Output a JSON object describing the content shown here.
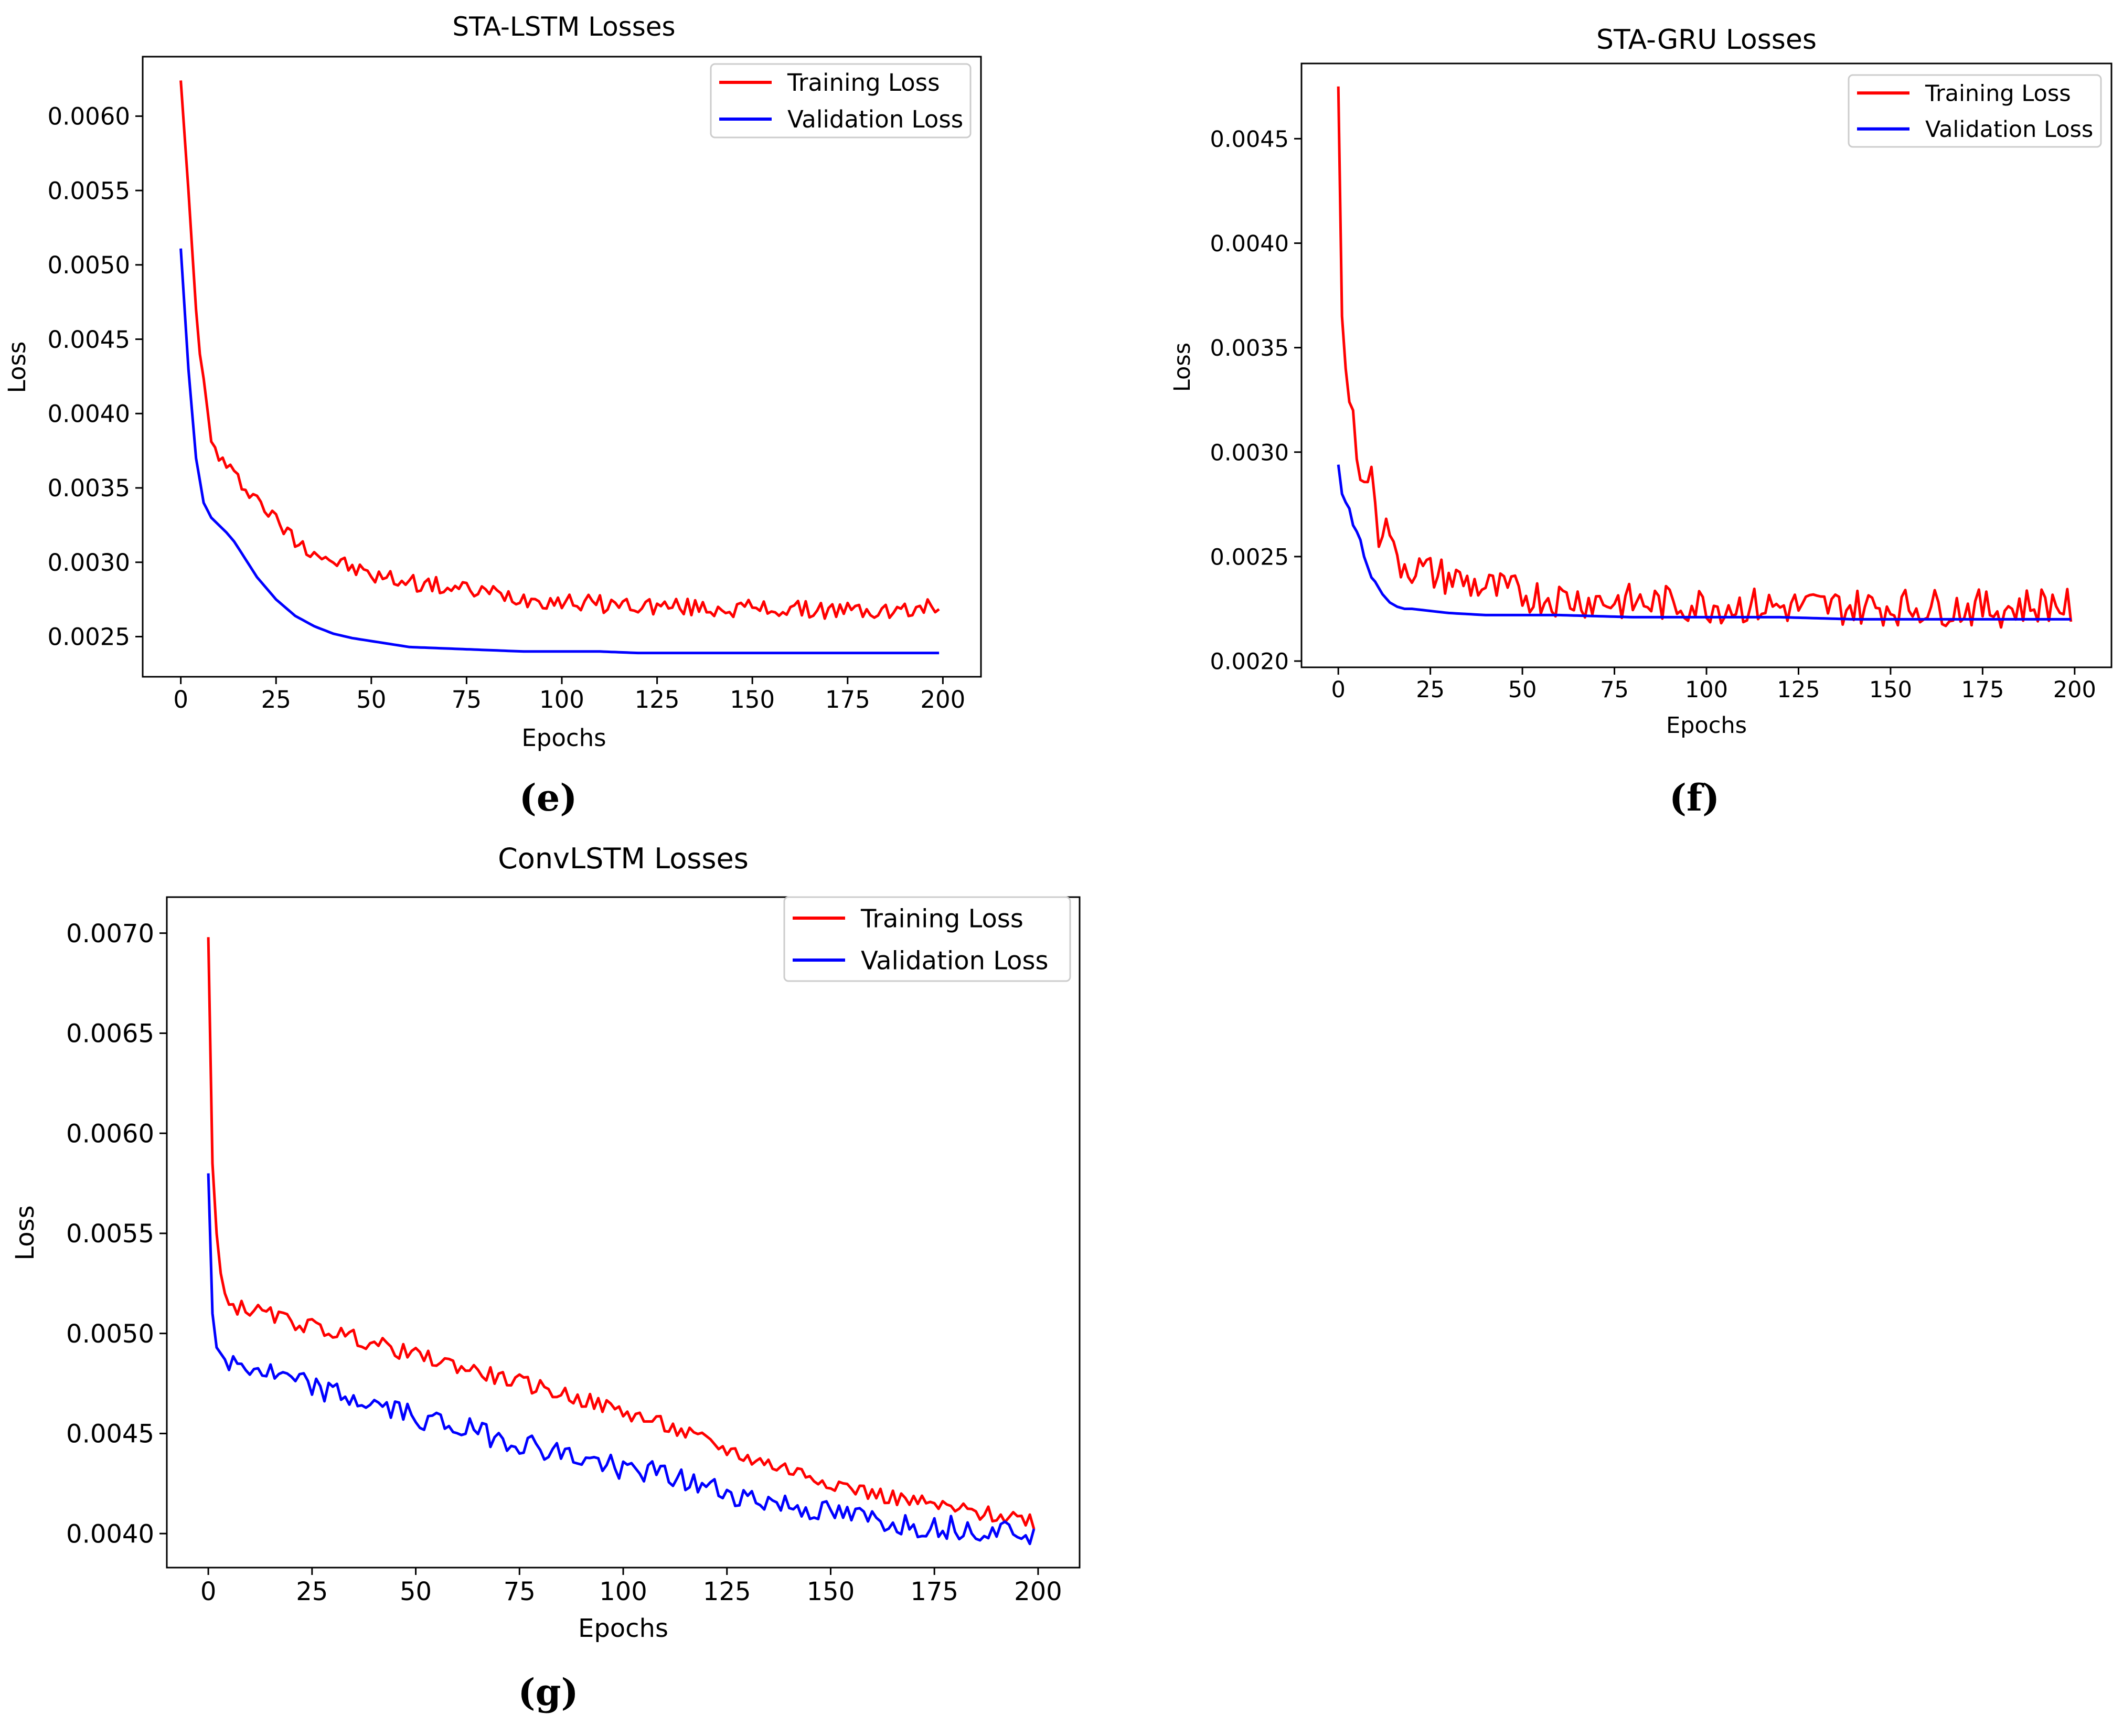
{
  "colors": {
    "training": "#ff0000",
    "validation": "#0000ff",
    "axis": "#000000",
    "background": "#ffffff"
  },
  "chart_data": [
    {
      "panel": "(e)",
      "type": "line",
      "title": "STA-LSTM Losses",
      "xlabel": "Epochs",
      "ylabel": "Loss",
      "xlim": [
        -10,
        210
      ],
      "ylim": [
        0.00223,
        0.0064
      ],
      "x_ticks": [
        0,
        25,
        50,
        75,
        100,
        125,
        150,
        175,
        200
      ],
      "x_tick_labels": [
        "0",
        "25",
        "50",
        "75",
        "100",
        "125",
        "150",
        "175",
        "200"
      ],
      "y_ticks": [
        0.0025,
        0.003,
        0.0035,
        0.004,
        0.0045,
        0.005,
        0.0055,
        0.006
      ],
      "y_tick_labels": [
        "0.0025",
        "0.0030",
        "0.0035",
        "0.0040",
        "0.0045",
        "0.0050",
        "0.0055",
        "0.0060"
      ],
      "legend": [
        "Training Loss",
        "Validation Loss"
      ],
      "legend_position": "upper right",
      "series": [
        {
          "name": "Training Loss",
          "x": [
            0,
            2,
            4,
            6,
            8,
            10,
            12,
            14,
            16,
            18,
            20,
            25,
            30,
            35,
            40,
            45,
            50,
            55,
            60,
            70,
            80,
            90,
            100,
            110,
            120,
            130,
            140,
            150,
            160,
            170,
            180,
            190,
            199
          ],
          "values": [
            0.00624,
            0.0055,
            0.0047,
            0.0042,
            0.0038,
            0.00372,
            0.00364,
            0.00358,
            0.00353,
            0.00349,
            0.00343,
            0.00328,
            0.00315,
            0.00308,
            0.00301,
            0.00296,
            0.00291,
            0.00289,
            0.00287,
            0.00283,
            0.0028,
            0.00276,
            0.00274,
            0.00272,
            0.00271,
            0.0027,
            0.00269,
            0.00269,
            0.00268,
            0.00268,
            0.00267,
            0.00267,
            0.00271
          ],
          "noise_amplitude": 6e-05
        },
        {
          "name": "Validation Loss",
          "x": [
            0,
            2,
            4,
            6,
            8,
            10,
            12,
            14,
            16,
            18,
            20,
            25,
            30,
            35,
            40,
            45,
            50,
            55,
            60,
            70,
            80,
            90,
            100,
            110,
            120,
            130,
            140,
            150,
            160,
            170,
            180,
            190,
            199
          ],
          "values": [
            0.00511,
            0.0043,
            0.0037,
            0.0034,
            0.0033,
            0.00325,
            0.0032,
            0.00314,
            0.00306,
            0.00298,
            0.0029,
            0.00275,
            0.00264,
            0.00257,
            0.00252,
            0.00249,
            0.00247,
            0.00245,
            0.00243,
            0.00242,
            0.00241,
            0.0024,
            0.0024,
            0.0024,
            0.00239,
            0.00239,
            0.00239,
            0.00239,
            0.00239,
            0.00239,
            0.00239,
            0.00239,
            0.00239
          ],
          "noise_amplitude": 0.0
        }
      ]
    },
    {
      "panel": "(f)",
      "type": "line",
      "title": "STA-GRU Losses",
      "xlabel": "Epochs",
      "ylabel": "Loss",
      "xlim": [
        -10,
        210
      ],
      "ylim": [
        0.00197,
        0.00486
      ],
      "x_ticks": [
        0,
        25,
        50,
        75,
        100,
        125,
        150,
        175,
        200
      ],
      "x_tick_labels": [
        "0",
        "25",
        "50",
        "75",
        "100",
        "125",
        "150",
        "175",
        "200"
      ],
      "y_ticks": [
        0.002,
        0.0025,
        0.003,
        0.0035,
        0.004,
        0.0045
      ],
      "y_tick_labels": [
        "0.0020",
        "0.0025",
        "0.0030",
        "0.0035",
        "0.0040",
        "0.0045"
      ],
      "legend": [
        "Training Loss",
        "Validation Loss"
      ],
      "legend_position": "upper right",
      "series": [
        {
          "name": "Training Loss",
          "x": [
            0,
            1,
            2,
            3,
            4,
            5,
            6,
            7,
            8,
            9,
            10,
            11,
            12,
            13,
            14,
            15,
            16,
            18,
            20,
            25,
            30,
            40,
            50,
            60,
            80,
            100,
            120,
            140,
            160,
            180,
            195,
            199
          ],
          "values": [
            0.00475,
            0.00365,
            0.0034,
            0.00324,
            0.0032,
            0.003,
            0.00283,
            0.00288,
            0.0029,
            0.00285,
            0.00282,
            0.00262,
            0.00265,
            0.00263,
            0.00265,
            0.0025,
            0.00248,
            0.00247,
            0.00245,
            0.00242,
            0.0024,
            0.00235,
            0.00232,
            0.0023,
            0.00228,
            0.00227,
            0.00226,
            0.00226,
            0.00226,
            0.00225,
            0.00228,
            0.00225
          ],
          "noise_amplitude": 9e-05
        },
        {
          "name": "Validation Loss",
          "x": [
            0,
            1,
            2,
            3,
            4,
            5,
            6,
            7,
            8,
            9,
            10,
            12,
            14,
            16,
            18,
            20,
            25,
            30,
            40,
            50,
            60,
            80,
            100,
            120,
            140,
            160,
            180,
            199
          ],
          "values": [
            0.00294,
            0.0028,
            0.00276,
            0.00273,
            0.00265,
            0.00262,
            0.00258,
            0.0025,
            0.00245,
            0.0024,
            0.00238,
            0.00232,
            0.00228,
            0.00226,
            0.00225,
            0.00225,
            0.00224,
            0.00223,
            0.00222,
            0.00222,
            0.00222,
            0.00221,
            0.00221,
            0.00221,
            0.0022,
            0.0022,
            0.0022,
            0.0022
          ],
          "noise_amplitude": 0.0
        }
      ]
    },
    {
      "panel": "(g)",
      "type": "line",
      "title": "ConvLSTM Losses",
      "xlabel": "Epochs",
      "ylabel": "Loss",
      "xlim": [
        -10,
        210
      ],
      "ylim": [
        0.00383,
        0.00718
      ],
      "x_ticks": [
        0,
        25,
        50,
        75,
        100,
        125,
        150,
        175,
        200
      ],
      "x_tick_labels": [
        "0",
        "25",
        "50",
        "75",
        "100",
        "125",
        "150",
        "175",
        "200"
      ],
      "y_ticks": [
        0.004,
        0.0045,
        0.005,
        0.0055,
        0.006,
        0.0065,
        0.007
      ],
      "y_tick_labels": [
        "0.0040",
        "0.0045",
        "0.0050",
        "0.0055",
        "0.0060",
        "0.0065",
        "0.0070"
      ],
      "legend": [
        "Training Loss",
        "Validation Loss"
      ],
      "legend_position": "upper right",
      "series": [
        {
          "name": "Training Loss",
          "x": [
            0,
            1,
            2,
            3,
            4,
            5,
            10,
            20,
            30,
            40,
            50,
            60,
            70,
            80,
            90,
            100,
            110,
            120,
            130,
            140,
            150,
            160,
            170,
            180,
            190,
            197,
            199
          ],
          "values": [
            0.00698,
            0.00585,
            0.0055,
            0.0053,
            0.0052,
            0.00514,
            0.00512,
            0.00506,
            0.00501,
            0.00495,
            0.00489,
            0.00484,
            0.00478,
            0.00473,
            0.00467,
            0.00461,
            0.00454,
            0.00446,
            0.00438,
            0.00432,
            0.00426,
            0.0042,
            0.00416,
            0.00412,
            0.00409,
            0.00408,
            0.00406
          ],
          "noise_amplitude": 4e-05
        },
        {
          "name": "Validation Loss",
          "x": [
            0,
            1,
            2,
            3,
            4,
            5,
            10,
            20,
            30,
            40,
            50,
            60,
            70,
            80,
            90,
            100,
            110,
            120,
            130,
            140,
            150,
            160,
            170,
            180,
            190,
            197,
            199
          ],
          "values": [
            0.0058,
            0.0051,
            0.00493,
            0.0049,
            0.00487,
            0.00485,
            0.00483,
            0.00476,
            0.0047,
            0.00464,
            0.00459,
            0.00453,
            0.00448,
            0.00443,
            0.00437,
            0.00433,
            0.00429,
            0.00423,
            0.00418,
            0.00414,
            0.0041,
            0.00407,
            0.00404,
            0.00403,
            0.00402,
            0.00402,
            0.00398
          ],
          "noise_amplitude": 6e-05
        }
      ]
    }
  ]
}
